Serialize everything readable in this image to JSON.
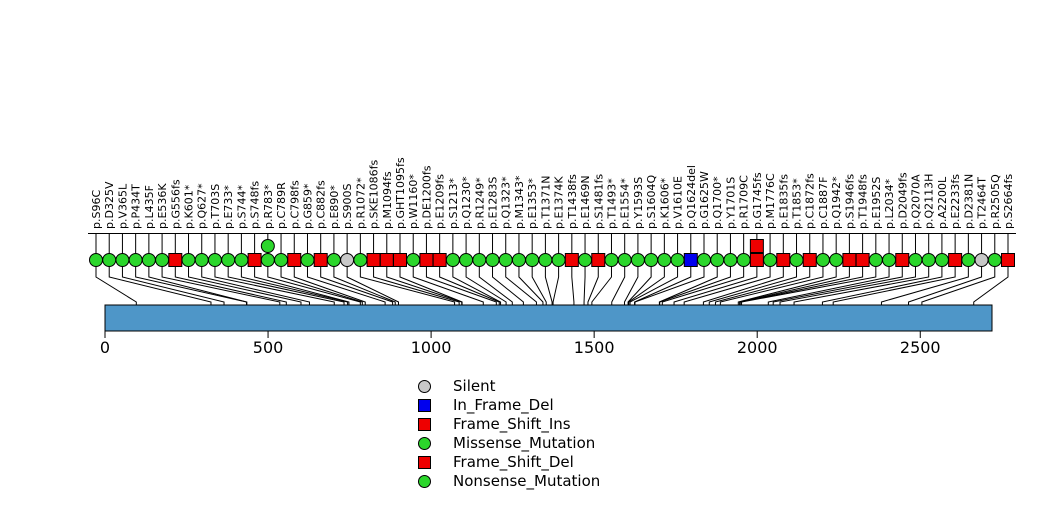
{
  "chart_data": {
    "type": "lollipop",
    "title": "",
    "gene_length": 2720,
    "axis_ticks": [
      0,
      500,
      1000,
      1500,
      2000,
      2500
    ],
    "gene_bar_color": "#4e96c8",
    "colors": {
      "Silent": "#c8c8c8",
      "In_Frame_Del": "#0000ee",
      "Frame_Shift_Ins": "#ee0000",
      "Missense_Mutation": "#2bd62b",
      "Frame_Shift_Del": "#ee0000",
      "Nonsense_Mutation": "#2bd62b"
    },
    "legend": [
      {
        "label": "Silent",
        "shape": "circle",
        "color": "#c8c8c8"
      },
      {
        "label": "In_Frame_Del",
        "shape": "square",
        "color": "#0000ee"
      },
      {
        "label": "Frame_Shift_Ins",
        "shape": "square",
        "color": "#ee0000"
      },
      {
        "label": "Missense_Mutation",
        "shape": "circle",
        "color": "#2bd62b"
      },
      {
        "label": "Frame_Shift_Del",
        "shape": "square",
        "color": "#ee0000"
      },
      {
        "label": "Nonsense_Mutation",
        "shape": "circle",
        "color": "#2bd62b"
      }
    ],
    "mutations": [
      {
        "label": "p.S96C",
        "pos": 96,
        "type": "Missense_Mutation"
      },
      {
        "label": "p.D325V",
        "pos": 325,
        "type": "Missense_Mutation"
      },
      {
        "label": "p.V365L",
        "pos": 365,
        "type": "Missense_Mutation"
      },
      {
        "label": "p.P434T",
        "pos": 434,
        "type": "Missense_Mutation"
      },
      {
        "label": "p.L435F",
        "pos": 435,
        "type": "Missense_Mutation"
      },
      {
        "label": "p.E536K",
        "pos": 536,
        "type": "Missense_Mutation"
      },
      {
        "label": "p.G556fs",
        "pos": 556,
        "type": "Frame_Shift_Ins"
      },
      {
        "label": "p.K601*",
        "pos": 601,
        "type": "Nonsense_Mutation"
      },
      {
        "label": "p.Q627*",
        "pos": 627,
        "type": "Nonsense_Mutation"
      },
      {
        "label": "p.T703S",
        "pos": 703,
        "type": "Missense_Mutation"
      },
      {
        "label": "p.E733*",
        "pos": 733,
        "type": "Nonsense_Mutation"
      },
      {
        "label": "p.S744*",
        "pos": 744,
        "type": "Nonsense_Mutation"
      },
      {
        "label": "p.S748fs",
        "pos": 748,
        "type": "Frame_Shift_Del"
      },
      {
        "label": "p.R783*",
        "pos": 783,
        "type": "Nonsense_Mutation",
        "stacked": {
          "label": "p.R783W",
          "type": "Missense_Mutation"
        }
      },
      {
        "label": "p.C789R",
        "pos": 789,
        "type": "Missense_Mutation"
      },
      {
        "label": "p.C798fs",
        "pos": 798,
        "type": "Frame_Shift_Ins"
      },
      {
        "label": "p.G859*",
        "pos": 859,
        "type": "Nonsense_Mutation"
      },
      {
        "label": "p.C882fs",
        "pos": 882,
        "type": "Frame_Shift_Del"
      },
      {
        "label": "p.E890*",
        "pos": 890,
        "type": "Nonsense_Mutation"
      },
      {
        "label": "p.S900S",
        "pos": 900,
        "type": "Silent"
      },
      {
        "label": "p.R1072*",
        "pos": 1072,
        "type": "Nonsense_Mutation"
      },
      {
        "label": "p.SKE1086fs",
        "pos": 1086,
        "type": "Frame_Shift_Del"
      },
      {
        "label": "p.M1094fs",
        "pos": 1094,
        "type": "Frame_Shift_Del"
      },
      {
        "label": "p.GHT1095fs",
        "pos": 1095,
        "type": "Frame_Shift_Del"
      },
      {
        "label": "p.W1160*",
        "pos": 1160,
        "type": "Nonsense_Mutation"
      },
      {
        "label": "p.DE1200fs",
        "pos": 1200,
        "type": "Frame_Shift_Del"
      },
      {
        "label": "p.E1209fs",
        "pos": 1209,
        "type": "Frame_Shift_Ins"
      },
      {
        "label": "p.S1213*",
        "pos": 1213,
        "type": "Nonsense_Mutation"
      },
      {
        "label": "p.Q1230*",
        "pos": 1230,
        "type": "Nonsense_Mutation"
      },
      {
        "label": "p.R1249*",
        "pos": 1249,
        "type": "Nonsense_Mutation"
      },
      {
        "label": "p.E1283S",
        "pos": 1283,
        "type": "Missense_Mutation"
      },
      {
        "label": "p.Q1323*",
        "pos": 1323,
        "type": "Nonsense_Mutation"
      },
      {
        "label": "p.M1343*",
        "pos": 1343,
        "type": "Nonsense_Mutation"
      },
      {
        "label": "p.E1353*",
        "pos": 1353,
        "type": "Nonsense_Mutation"
      },
      {
        "label": "p.T1371N",
        "pos": 1371,
        "type": "Missense_Mutation"
      },
      {
        "label": "p.E1374K",
        "pos": 1374,
        "type": "Missense_Mutation"
      },
      {
        "label": "p.T1438fs",
        "pos": 1438,
        "type": "Frame_Shift_Ins"
      },
      {
        "label": "p.E1469N",
        "pos": 1469,
        "type": "Missense_Mutation"
      },
      {
        "label": "p.S1481fs",
        "pos": 1481,
        "type": "Frame_Shift_Del"
      },
      {
        "label": "p.T1493*",
        "pos": 1493,
        "type": "Nonsense_Mutation"
      },
      {
        "label": "p.E1554*",
        "pos": 1554,
        "type": "Nonsense_Mutation"
      },
      {
        "label": "p.Y1593S",
        "pos": 1593,
        "type": "Missense_Mutation"
      },
      {
        "label": "p.S1604Q",
        "pos": 1604,
        "type": "Missense_Mutation"
      },
      {
        "label": "p.K1606*",
        "pos": 1606,
        "type": "Nonsense_Mutation"
      },
      {
        "label": "p.V1610E",
        "pos": 1610,
        "type": "Missense_Mutation"
      },
      {
        "label": "p.Q1624del",
        "pos": 1624,
        "type": "In_Frame_Del"
      },
      {
        "label": "p.G1625W",
        "pos": 1625,
        "type": "Missense_Mutation"
      },
      {
        "label": "p.Q1700*",
        "pos": 1700,
        "type": "Nonsense_Mutation"
      },
      {
        "label": "p.Y1701S",
        "pos": 1701,
        "type": "Missense_Mutation"
      },
      {
        "label": "p.R1709C",
        "pos": 1709,
        "type": "Missense_Mutation"
      },
      {
        "label": "p.G1745fs",
        "pos": 1745,
        "type": "Frame_Shift_Ins",
        "stacked": {
          "label": "p.G1745fs",
          "type": "Frame_Shift_Ins"
        }
      },
      {
        "label": "p.M1776C",
        "pos": 1776,
        "type": "Missense_Mutation"
      },
      {
        "label": "p.E1835fs",
        "pos": 1835,
        "type": "Frame_Shift_Del"
      },
      {
        "label": "p.T1853*",
        "pos": 1853,
        "type": "Nonsense_Mutation"
      },
      {
        "label": "p.C1872fs",
        "pos": 1872,
        "type": "Frame_Shift_Ins"
      },
      {
        "label": "p.C1887F",
        "pos": 1887,
        "type": "Missense_Mutation"
      },
      {
        "label": "p.Q1942*",
        "pos": 1942,
        "type": "Nonsense_Mutation"
      },
      {
        "label": "p.S1946fs",
        "pos": 1946,
        "type": "Frame_Shift_Ins"
      },
      {
        "label": "p.T1948fs",
        "pos": 1948,
        "type": "Frame_Shift_Del"
      },
      {
        "label": "p.E1952S",
        "pos": 1952,
        "type": "Missense_Mutation"
      },
      {
        "label": "p.L2034*",
        "pos": 2034,
        "type": "Nonsense_Mutation"
      },
      {
        "label": "p.D2049fs",
        "pos": 2049,
        "type": "Frame_Shift_Del"
      },
      {
        "label": "p.Q2070A",
        "pos": 2070,
        "type": "Missense_Mutation"
      },
      {
        "label": "p.Q2113H",
        "pos": 2113,
        "type": "Missense_Mutation"
      },
      {
        "label": "p.A2200L",
        "pos": 2200,
        "type": "Missense_Mutation"
      },
      {
        "label": "p.E2233fs",
        "pos": 2233,
        "type": "Frame_Shift_Ins"
      },
      {
        "label": "p.D2381N",
        "pos": 2381,
        "type": "Missense_Mutation"
      },
      {
        "label": "p.T2464T",
        "pos": 2464,
        "type": "Silent"
      },
      {
        "label": "p.R2505Q",
        "pos": 2505,
        "type": "Missense_Mutation"
      },
      {
        "label": "p.S2664fs",
        "pos": 2664,
        "type": "Frame_Shift_Ins"
      }
    ]
  }
}
